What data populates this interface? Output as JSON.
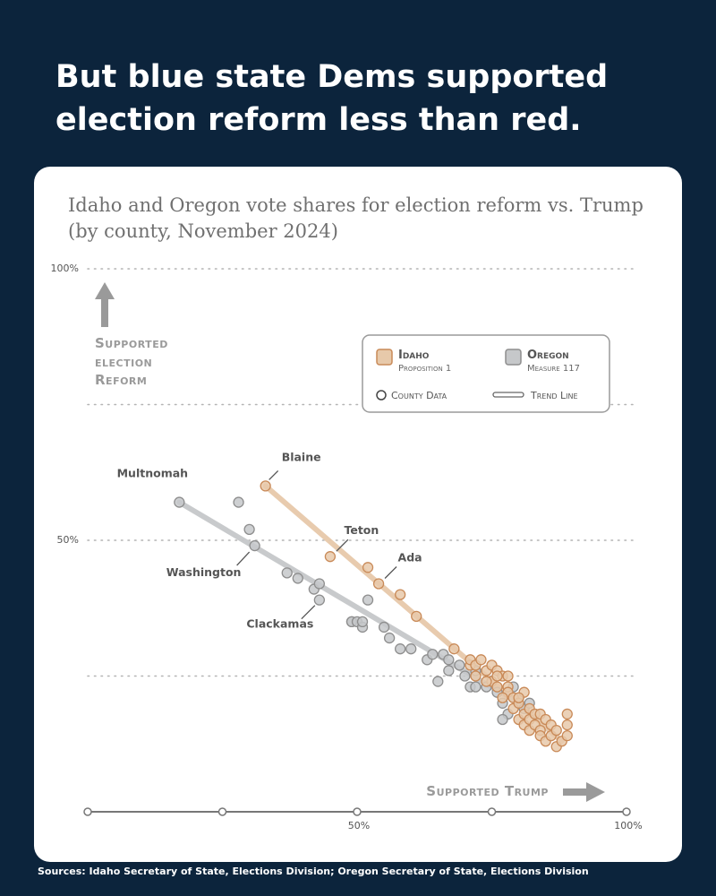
{
  "headline": "But blue state Dems supported election reform less than red.",
  "sources": "Sources: Idaho Secretary of State, Elections Division; Oregon Secretary of State, Elections Division",
  "chart_data": {
    "type": "scatter",
    "title": "Idaho and Oregon vote shares for election reform vs. Trump",
    "subtitle": "(by county, November 2024)",
    "xlabel": "Supported Trump",
    "ylabel_lines": [
      "Supported",
      "election",
      "Reform"
    ],
    "xlim": [
      0,
      100
    ],
    "ylim": [
      0,
      100
    ],
    "x_ticks": [
      {
        "value": 50,
        "label": "50%"
      },
      {
        "value": 100,
        "label": "100%"
      }
    ],
    "y_ticks": [
      {
        "value": 50,
        "label": "50%"
      },
      {
        "value": 100,
        "label": "100%"
      }
    ],
    "y_gridlines": [
      25,
      50,
      75,
      100
    ],
    "x_markers": [
      0,
      25,
      50,
      75,
      100
    ],
    "grid": "dotted horizontal",
    "legend": {
      "placement": "upper-right",
      "key_county": "County Data",
      "key_trend": "Trend Line"
    },
    "series": [
      {
        "name": "Idaho",
        "sublabel": "Proposition 1",
        "color": "#c98a58",
        "fill": "#e7c9aa",
        "trend": [
          [
            33,
            60
          ],
          [
            88,
            13
          ]
        ],
        "points": [
          [
            33,
            60
          ],
          [
            45,
            47
          ],
          [
            52,
            45
          ],
          [
            54,
            42
          ],
          [
            58,
            40
          ],
          [
            61,
            36
          ],
          [
            68,
            30
          ],
          [
            71,
            27
          ],
          [
            71,
            28
          ],
          [
            72,
            27
          ],
          [
            72,
            25
          ],
          [
            73,
            28
          ],
          [
            74,
            26
          ],
          [
            75,
            27
          ],
          [
            75,
            24
          ],
          [
            76,
            26
          ],
          [
            76,
            23
          ],
          [
            77,
            25
          ],
          [
            78,
            23
          ],
          [
            78,
            22
          ],
          [
            79,
            21
          ],
          [
            79,
            19
          ],
          [
            80,
            17
          ],
          [
            80,
            20
          ],
          [
            81,
            18
          ],
          [
            81,
            16
          ],
          [
            81,
            22
          ],
          [
            82,
            19
          ],
          [
            82,
            17
          ],
          [
            82,
            15
          ],
          [
            83,
            18
          ],
          [
            83,
            16
          ],
          [
            84,
            15
          ],
          [
            84,
            14
          ],
          [
            84,
            18
          ],
          [
            85,
            17
          ],
          [
            85,
            13
          ],
          [
            86,
            16
          ],
          [
            86,
            14
          ],
          [
            87,
            12
          ],
          [
            87,
            15
          ],
          [
            88,
            13
          ],
          [
            89,
            16
          ],
          [
            89,
            18
          ],
          [
            89,
            14
          ],
          [
            80,
            21
          ],
          [
            78,
            25
          ],
          [
            74,
            24
          ],
          [
            76,
            25
          ],
          [
            77,
            21
          ]
        ]
      },
      {
        "name": "Oregon",
        "sublabel": "Measure 117",
        "color": "#8e8e8e",
        "fill": "#c6c8ca",
        "trend": [
          [
            17,
            57
          ],
          [
            80,
            20
          ]
        ],
        "points": [
          [
            17,
            57
          ],
          [
            28,
            57
          ],
          [
            30,
            52
          ],
          [
            31,
            49
          ],
          [
            37,
            44
          ],
          [
            39,
            43
          ],
          [
            42,
            41
          ],
          [
            43,
            42
          ],
          [
            43,
            39
          ],
          [
            49,
            35
          ],
          [
            49,
            35
          ],
          [
            50,
            35
          ],
          [
            51,
            34
          ],
          [
            51,
            35
          ],
          [
            52,
            39
          ],
          [
            55,
            34
          ],
          [
            56,
            32
          ],
          [
            58,
            30
          ],
          [
            60,
            30
          ],
          [
            63,
            28
          ],
          [
            64,
            29
          ],
          [
            66,
            29
          ],
          [
            67,
            28
          ],
          [
            67,
            26
          ],
          [
            69,
            27
          ],
          [
            70,
            25
          ],
          [
            71,
            23
          ],
          [
            72,
            23
          ],
          [
            74,
            23
          ],
          [
            76,
            22
          ],
          [
            77,
            20
          ],
          [
            78,
            18
          ],
          [
            79,
            23
          ],
          [
            80,
            21
          ],
          [
            81,
            19
          ],
          [
            82,
            20
          ],
          [
            77,
            17
          ],
          [
            72,
            26
          ],
          [
            65,
            24
          ]
        ]
      }
    ],
    "annotations": [
      {
        "text": "Multnomah",
        "x": 17,
        "y": 57,
        "dx": -30,
        "dy": -28,
        "anchor": "middle",
        "line": false
      },
      {
        "text": "Blaine",
        "x": 33,
        "y": 60,
        "dx": 40,
        "dy": -28,
        "anchor": "middle",
        "line": [
          4,
          -7,
          14,
          -17
        ]
      },
      {
        "text": "Teton",
        "x": 45,
        "y": 47,
        "dx": 35,
        "dy": -25,
        "anchor": "middle",
        "line": [
          7,
          -6,
          20,
          -19
        ]
      },
      {
        "text": "Ada",
        "x": 54,
        "y": 42,
        "dx": 35,
        "dy": -25,
        "anchor": "middle",
        "line": [
          7,
          -6,
          20,
          -19
        ]
      },
      {
        "text": "Washington",
        "x": 31,
        "y": 49,
        "dx": -57,
        "dy": 34,
        "anchor": "middle",
        "line": [
          -6,
          7,
          -20,
          22
        ]
      },
      {
        "text": "Clackamas",
        "x": 43,
        "y": 39,
        "dx": -44,
        "dy": 31,
        "anchor": "middle",
        "line": [
          -5,
          6,
          -20,
          21
        ]
      }
    ]
  }
}
